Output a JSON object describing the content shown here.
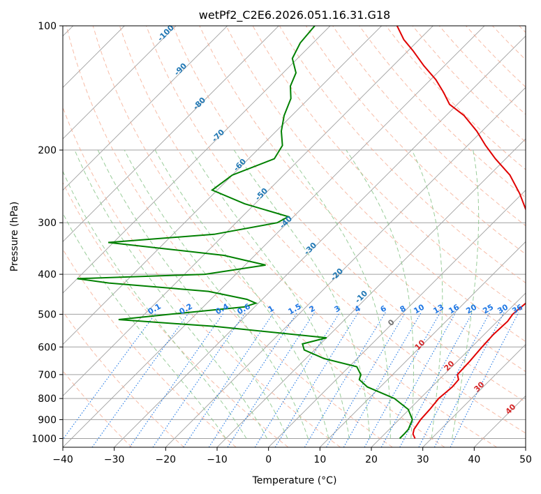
{
  "chart_data": {
    "type": "line",
    "title": "wetPf2_C2E6.2026.051.16.31.G18",
    "xlabel": "Temperature (°C)",
    "ylabel": "Pressure (hPa)",
    "xlim": [
      -40,
      50
    ],
    "ylim": [
      1050,
      100
    ],
    "y_scale": "log",
    "skew_degrees": 45,
    "x_ticks": [
      "−40",
      "−30",
      "−20",
      "−10",
      "0",
      "10",
      "20",
      "30",
      "40",
      "50"
    ],
    "y_ticks": [
      "100",
      "200",
      "300",
      "400",
      "500",
      "600",
      "700",
      "800",
      "900",
      "1000"
    ],
    "grid": true,
    "colors": {
      "temperature": "#e00000",
      "dewpoint": "#008000",
      "isotherm": "#a0a0a0",
      "dry_adiabat": "#f4a58a",
      "moist_adiabat": "#8fc88f",
      "mixing_ratio": "#1f77e4",
      "isotherm_label": "#1f77b4",
      "pseudo_label": "#d62728",
      "zero_label": "#777777"
    },
    "series": [
      {
        "key": "temperature",
        "points": [
          [
            26.8,
            1000
          ],
          [
            25.5,
            975
          ],
          [
            24.8,
            950
          ],
          [
            24.2,
            900
          ],
          [
            24.0,
            850
          ],
          [
            23.6,
            800
          ],
          [
            24.0,
            750
          ],
          [
            23.8,
            720
          ],
          [
            22.6,
            700
          ],
          [
            22.4,
            650
          ],
          [
            22.0,
            600
          ],
          [
            21.8,
            560
          ],
          [
            22.0,
            520
          ],
          [
            21.6,
            500
          ],
          [
            22.0,
            470
          ],
          [
            21.8,
            440
          ],
          [
            20.6,
            420
          ],
          [
            19.2,
            400
          ],
          [
            17.5,
            380
          ],
          [
            16.0,
            360
          ],
          [
            13.5,
            340
          ],
          [
            10.8,
            320
          ],
          [
            7.5,
            300
          ],
          [
            4.0,
            280
          ],
          [
            -0.5,
            255
          ],
          [
            -6.0,
            230
          ],
          [
            -12.0,
            210
          ],
          [
            -16.5,
            195
          ],
          [
            -21.0,
            180
          ],
          [
            -26.5,
            165
          ],
          [
            -31.5,
            155
          ],
          [
            -35.0,
            145
          ],
          [
            -39.0,
            135
          ],
          [
            -44.0,
            125
          ],
          [
            -49.0,
            115
          ],
          [
            -53.0,
            108
          ],
          [
            -57.0,
            100
          ]
        ]
      },
      {
        "key": "dewpoint",
        "points": [
          [
            23.8,
            1000
          ],
          [
            23.8,
            975
          ],
          [
            23.7,
            950
          ],
          [
            22.6,
            900
          ],
          [
            19.8,
            850
          ],
          [
            15.0,
            800
          ],
          [
            7.5,
            750
          ],
          [
            4.5,
            720
          ],
          [
            3.8,
            700
          ],
          [
            1.5,
            670
          ],
          [
            -6.5,
            640
          ],
          [
            -12.0,
            610
          ],
          [
            -13.5,
            590
          ],
          [
            -10.0,
            570
          ],
          [
            -34.0,
            535
          ],
          [
            -54.0,
            515
          ],
          [
            -45.0,
            500
          ],
          [
            -32.0,
            480
          ],
          [
            -30.5,
            470
          ],
          [
            -33.0,
            460
          ],
          [
            -42.0,
            440
          ],
          [
            -63.0,
            420
          ],
          [
            -70.0,
            410
          ],
          [
            -46.0,
            400
          ],
          [
            -36.0,
            380
          ],
          [
            -46.0,
            360
          ],
          [
            -71.0,
            335
          ],
          [
            -52.0,
            320
          ],
          [
            -42.0,
            300
          ],
          [
            -41.0,
            290
          ],
          [
            -52.0,
            270
          ],
          [
            -61.0,
            250
          ],
          [
            -60.0,
            230
          ],
          [
            -55.0,
            210
          ],
          [
            -56.0,
            195
          ],
          [
            -59.0,
            180
          ],
          [
            -61.5,
            165
          ],
          [
            -63.5,
            150
          ],
          [
            -66.0,
            140
          ],
          [
            -67.5,
            130
          ],
          [
            -71.0,
            120
          ],
          [
            -72.5,
            110
          ],
          [
            -73.0,
            100
          ]
        ]
      }
    ],
    "isotherm_labels": [
      "-100",
      "-90",
      "-80",
      "-70",
      "-60",
      "-50",
      "-40",
      "-30",
      "-20",
      "-10"
    ],
    "mixing_ratio_labels": [
      "0.1",
      "0.2",
      "0.4",
      "0.6",
      "1",
      "1.5",
      "2",
      "3",
      "4",
      "6",
      "8",
      "10",
      "13",
      "16",
      "20",
      "25",
      "30",
      "36"
    ],
    "moist_labels": [
      "0",
      "10",
      "20",
      "30",
      "40"
    ]
  }
}
